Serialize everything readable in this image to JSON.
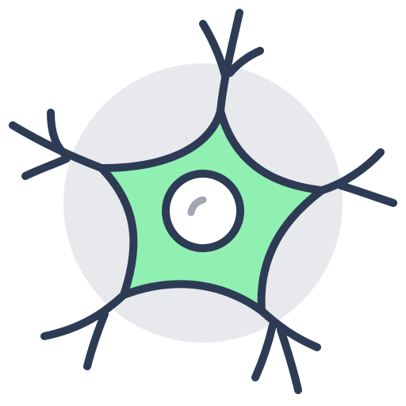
{
  "icon": {
    "name": "neuron-icon",
    "colors": {
      "outline": "#2E3B55",
      "cell_body": "#8FF0B1",
      "background_circle": "#E8E9EC",
      "nucleus_fill": "#FFFFFF",
      "highlight": "#A2A8B2"
    }
  }
}
